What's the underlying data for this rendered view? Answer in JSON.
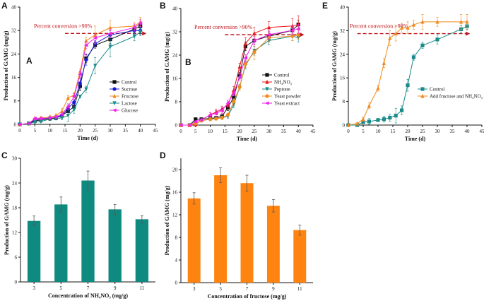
{
  "chart_data": [
    {
      "panel": "A",
      "inner_label": "A",
      "type": "line",
      "xlabel": "Time (d)",
      "ylabel": "Production of GAMG (mg/g)",
      "xlim": [
        0,
        45
      ],
      "ylim": [
        0,
        40
      ],
      "xticks": [
        0,
        5,
        10,
        15,
        20,
        25,
        30,
        35,
        40,
        45
      ],
      "yticks": [
        0,
        8,
        16,
        24,
        32,
        40
      ],
      "legend": "center-right",
      "annotation": {
        "text": "Percent conversion >90%",
        "y": 31,
        "x_from": 15,
        "x_to": 42,
        "color": "#c0141c"
      },
      "x": [
        0,
        3,
        5,
        7,
        10,
        12,
        14,
        16,
        18,
        20,
        22,
        25,
        30,
        38,
        40
      ],
      "series": [
        {
          "name": "Control",
          "color": "#111111",
          "marker": "square",
          "values": [
            0,
            0.3,
            1.2,
            1.5,
            2,
            2.2,
            3,
            4.5,
            6,
            13,
            22.5,
            27,
            29,
            32.5,
            33.5
          ],
          "err": [
            0,
            0.2,
            0.4,
            0.4,
            0.5,
            0.5,
            0.6,
            1,
            1,
            1.5,
            1.5,
            1,
            1.5,
            1.2,
            1.2
          ]
        },
        {
          "name": "Sucrose",
          "color": "#1a1ad6",
          "marker": "circle",
          "values": [
            0,
            0.3,
            1.5,
            1.8,
            2.2,
            2.5,
            3,
            5.5,
            7.5,
            14,
            22,
            27.5,
            30.5,
            32,
            32
          ],
          "err": [
            0,
            0.2,
            0.4,
            0.4,
            0.5,
            0.5,
            0.6,
            1,
            1,
            1.5,
            1.8,
            1,
            1.5,
            1.2,
            1.2
          ]
        },
        {
          "name": "Fructose",
          "color": "#f08a1c",
          "marker": "triangle-up",
          "values": [
            0,
            0.3,
            2,
            2.2,
            2.5,
            3,
            4.5,
            9,
            10,
            18,
            28.5,
            30.5,
            33,
            33.5,
            35
          ],
          "err": [
            0,
            0.2,
            0.5,
            0.5,
            0.6,
            0.6,
            1,
            0.8,
            1,
            0.8,
            1.2,
            3,
            2.5,
            1.2,
            1.5
          ]
        },
        {
          "name": "Lactose",
          "color": "#1a8a8a",
          "marker": "triangle-down",
          "values": [
            0,
            0.2,
            0.8,
            1,
            1.8,
            2,
            2.2,
            3,
            5,
            9.5,
            12,
            20,
            26.5,
            30,
            31.5
          ],
          "err": [
            0,
            0.2,
            0.4,
            0.4,
            0.5,
            0.5,
            0.6,
            2,
            1.2,
            0.5,
            1,
            2.8,
            3.5,
            1.5,
            1.2
          ]
        },
        {
          "name": "Glucose",
          "color": "#f020e8",
          "marker": "triangle-left",
          "values": [
            0,
            0.3,
            2,
            2,
            2.2,
            2.5,
            3.5,
            6,
            9.5,
            17,
            27,
            29.5,
            31,
            33,
            34.5
          ],
          "err": [
            0,
            0.2,
            0.4,
            0.4,
            0.5,
            0.5,
            0.6,
            1,
            1,
            1,
            1.2,
            1.2,
            1.5,
            1.2,
            1.2
          ]
        }
      ]
    },
    {
      "panel": "B",
      "inner_label": "B",
      "type": "line",
      "xlabel": "Time (d)",
      "ylabel": "Production of GAMG (mg/g)",
      "xlim": [
        0,
        45
      ],
      "ylim": [
        0,
        40
      ],
      "xticks": [
        0,
        5,
        10,
        15,
        20,
        25,
        30,
        35,
        40,
        45
      ],
      "yticks": [
        0,
        8,
        16,
        24,
        32,
        40
      ],
      "legend": "center-right",
      "annotation": {
        "text": "Percent conversion >90%",
        "y": 31,
        "x_from": 15,
        "x_to": 42,
        "color": "#c0141c"
      },
      "x": [
        0,
        3,
        5,
        7,
        10,
        12,
        14,
        16,
        18,
        20,
        22,
        25,
        30,
        38,
        40
      ],
      "series": [
        {
          "name": "Control",
          "color": "#111111",
          "marker": "square",
          "values": [
            0,
            0,
            2,
            2,
            2.3,
            2.5,
            3,
            6,
            9.5,
            17,
            27,
            29,
            30.5,
            32.5,
            34.5
          ],
          "err": [
            0,
            0,
            0.3,
            0.4,
            0.5,
            0.5,
            0.6,
            1,
            1,
            1,
            1.5,
            1.5,
            1.5,
            1.5,
            1.5
          ]
        },
        {
          "name": "NH₄NO₃",
          "color": "#e8161c",
          "marker": "triangle-up",
          "values": [
            0,
            0,
            0.2,
            1.8,
            3.5,
            4.5,
            5.5,
            7,
            12,
            20,
            28,
            31.5,
            33.5,
            34,
            34.5
          ],
          "err": [
            0,
            0,
            0.3,
            0.4,
            0.8,
            1,
            1,
            1,
            1.2,
            1.2,
            2,
            2,
            2,
            2.5,
            3
          ]
        },
        {
          "name": "Peptone",
          "color": "#1a8a8a",
          "marker": "triangle-down",
          "values": [
            0,
            0,
            0.5,
            1.5,
            2,
            2.2,
            2.5,
            3,
            7,
            13,
            20.5,
            25.5,
            29,
            30.5,
            30
          ],
          "err": [
            0,
            0,
            0.3,
            0.4,
            0.5,
            0.5,
            0.6,
            0.6,
            1,
            1,
            1.2,
            1.5,
            1.5,
            1.5,
            1.5
          ]
        },
        {
          "name": "Yeast powder",
          "color": "#f08a1c",
          "marker": "circle",
          "values": [
            0,
            0,
            0.5,
            1.5,
            2,
            2.2,
            2.5,
            3.5,
            8,
            13,
            21,
            25,
            30,
            30.5,
            31
          ],
          "err": [
            0,
            0,
            0.3,
            0.4,
            0.5,
            0.5,
            0.6,
            0.6,
            1,
            1,
            1.2,
            2.5,
            1.5,
            1.5,
            1.5
          ]
        },
        {
          "name": "Yeast extract",
          "color": "#f020e8",
          "marker": "triangle-left",
          "values": [
            0,
            0,
            1.2,
            1.8,
            3.5,
            4,
            5,
            7.5,
            11,
            16.5,
            23,
            29,
            31,
            32.5,
            33
          ],
          "err": [
            0,
            0,
            0.3,
            0.4,
            0.8,
            1,
            1,
            1,
            1,
            1,
            1.2,
            1.5,
            1.5,
            1.5,
            1.5
          ]
        }
      ]
    },
    {
      "panel": "E",
      "type": "line",
      "xlabel": "Time (d)",
      "ylabel": "Production of GAMG (mg/g)",
      "xlim": [
        0,
        45
      ],
      "ylim": [
        0,
        40
      ],
      "xticks": [
        0,
        5,
        10,
        15,
        20,
        25,
        30,
        35,
        40,
        45
      ],
      "yticks": [
        0,
        8,
        16,
        24,
        32,
        40
      ],
      "legend": "center-right",
      "annotation": {
        "text": "Percent conversion >90%",
        "y": 31,
        "x_from": 3,
        "x_to": 41,
        "color": "#c0141c"
      },
      "x": [
        0,
        3,
        5,
        7,
        10,
        12,
        14,
        16,
        18,
        20,
        22,
        25,
        30,
        38,
        40
      ],
      "series": [
        {
          "name": "Control",
          "color": "#1a8a8a",
          "marker": "square",
          "values": [
            0,
            0,
            1,
            1.2,
            1.7,
            2,
            2.5,
            3.2,
            5,
            13.5,
            23,
            27,
            29,
            32.5,
            33.5
          ],
          "err": [
            0,
            0.2,
            0.5,
            1,
            0.5,
            1,
            1.2,
            2.5,
            1.5,
            2,
            1,
            1,
            1.5,
            1.2,
            1.2
          ]
        },
        {
          "name": "Add fructose and NH₄NO₃",
          "color": "#f08a1c",
          "marker": "triangle-up",
          "values": [
            0,
            0.5,
            2,
            6.5,
            12.5,
            21,
            29.5,
            31,
            33,
            33,
            34,
            35,
            35,
            35,
            35
          ],
          "err": [
            0,
            0.3,
            0.7,
            1,
            1,
            1.5,
            2.5,
            2.5,
            1.5,
            2,
            1.5,
            2.5,
            1.5,
            2.5,
            2.5
          ]
        }
      ]
    },
    {
      "panel": "C",
      "type": "bar",
      "xlabel": "Concentration of NH₄NO₃ (mg/g)",
      "ylabel": "Production of GAMG (mg/g)",
      "categories": [
        "3",
        "5",
        "7",
        "9",
        "11"
      ],
      "values": [
        14.8,
        18.8,
        24.6,
        17.6,
        15.2
      ],
      "err": [
        1.2,
        1.8,
        2.3,
        1.2,
        0.9
      ],
      "ylim": [
        0,
        30
      ],
      "yticks": [
        0,
        6,
        12,
        18,
        24,
        30
      ],
      "color": "#0f8a80"
    },
    {
      "panel": "D",
      "type": "bar",
      "xlabel": "Concentration of fructose (mg/g)",
      "ylabel": "Production of GAMG (mg/g)",
      "categories": [
        "3",
        "5",
        "7",
        "9",
        "11"
      ],
      "values": [
        14.9,
        19.0,
        17.6,
        13.6,
        9.3
      ],
      "err": [
        1.0,
        1.3,
        1.4,
        1.1,
        0.9
      ],
      "ylim": [
        0,
        22
      ],
      "yticks": [
        0,
        4,
        8,
        12,
        16,
        20
      ],
      "color": "#ff8310"
    }
  ]
}
